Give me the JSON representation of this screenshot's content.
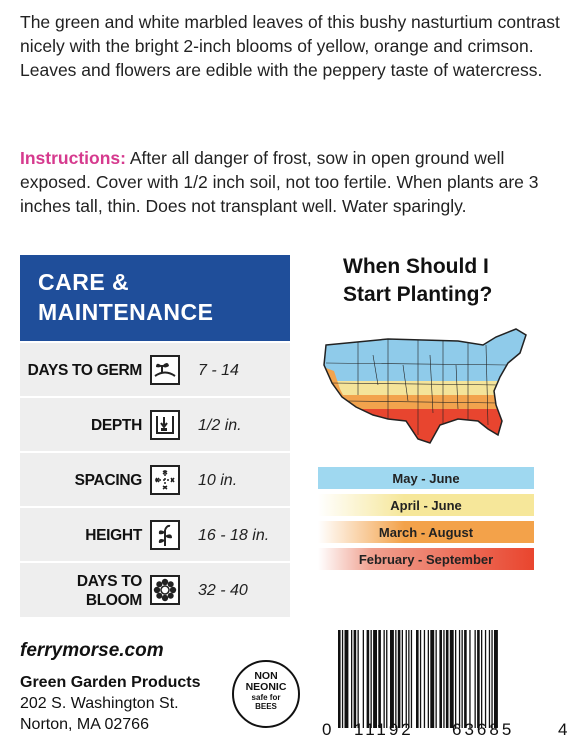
{
  "description": "The green and white marbled leaves of this bushy nasturtium contrast nicely with the bright 2-inch blooms of yellow, orange and crimson. Leaves and flowers are edible with the peppery taste of watercress.",
  "instructions": {
    "lead": "Instructions:",
    "text": " After all danger of frost, sow in open ground well exposed. Cover with 1/2 inch soil, not too fertile. When plants are 3 inches tall, thin. Does not transplant well. Water sparingly."
  },
  "care": {
    "title_line1": "CARE &",
    "title_line2": "MAINTENANCE",
    "rows": [
      {
        "label": "DAYS TO GERM",
        "value": "7 - 14",
        "icon": "seedling-icon"
      },
      {
        "label": "DEPTH",
        "value": "1/2 in.",
        "icon": "depth-icon"
      },
      {
        "label": "SPACING",
        "value": "10 in.",
        "icon": "spacing-icon"
      },
      {
        "label": "HEIGHT",
        "value": "16 - 18 in.",
        "icon": "plant-height-icon"
      },
      {
        "label_line1": "DAYS TO",
        "label_line2": "BLOOM",
        "value": "32 - 40",
        "icon": "flower-icon"
      }
    ]
  },
  "planting": {
    "title_line1": "When Should I",
    "title_line2": "Start Planting?",
    "zones": [
      {
        "label": "May - June",
        "color": "#9fd8f0"
      },
      {
        "label": "April - June",
        "color": "#f6e79a"
      },
      {
        "label": "March - August",
        "color": "#f3a24a"
      },
      {
        "label": "February - September",
        "color": "#e9452e"
      }
    ]
  },
  "footer": {
    "website": "ferrymorse.com",
    "company": "Green Garden Products",
    "street": "202 S. Washington St.",
    "city": "Norton, MA 02766",
    "badge": {
      "line1": "NON",
      "line2": "NEONIC",
      "line3": "safe for",
      "line4": "BEES"
    }
  },
  "barcode": {
    "lead": "0",
    "group1": "11192",
    "group2": "63685",
    "check": "4"
  }
}
